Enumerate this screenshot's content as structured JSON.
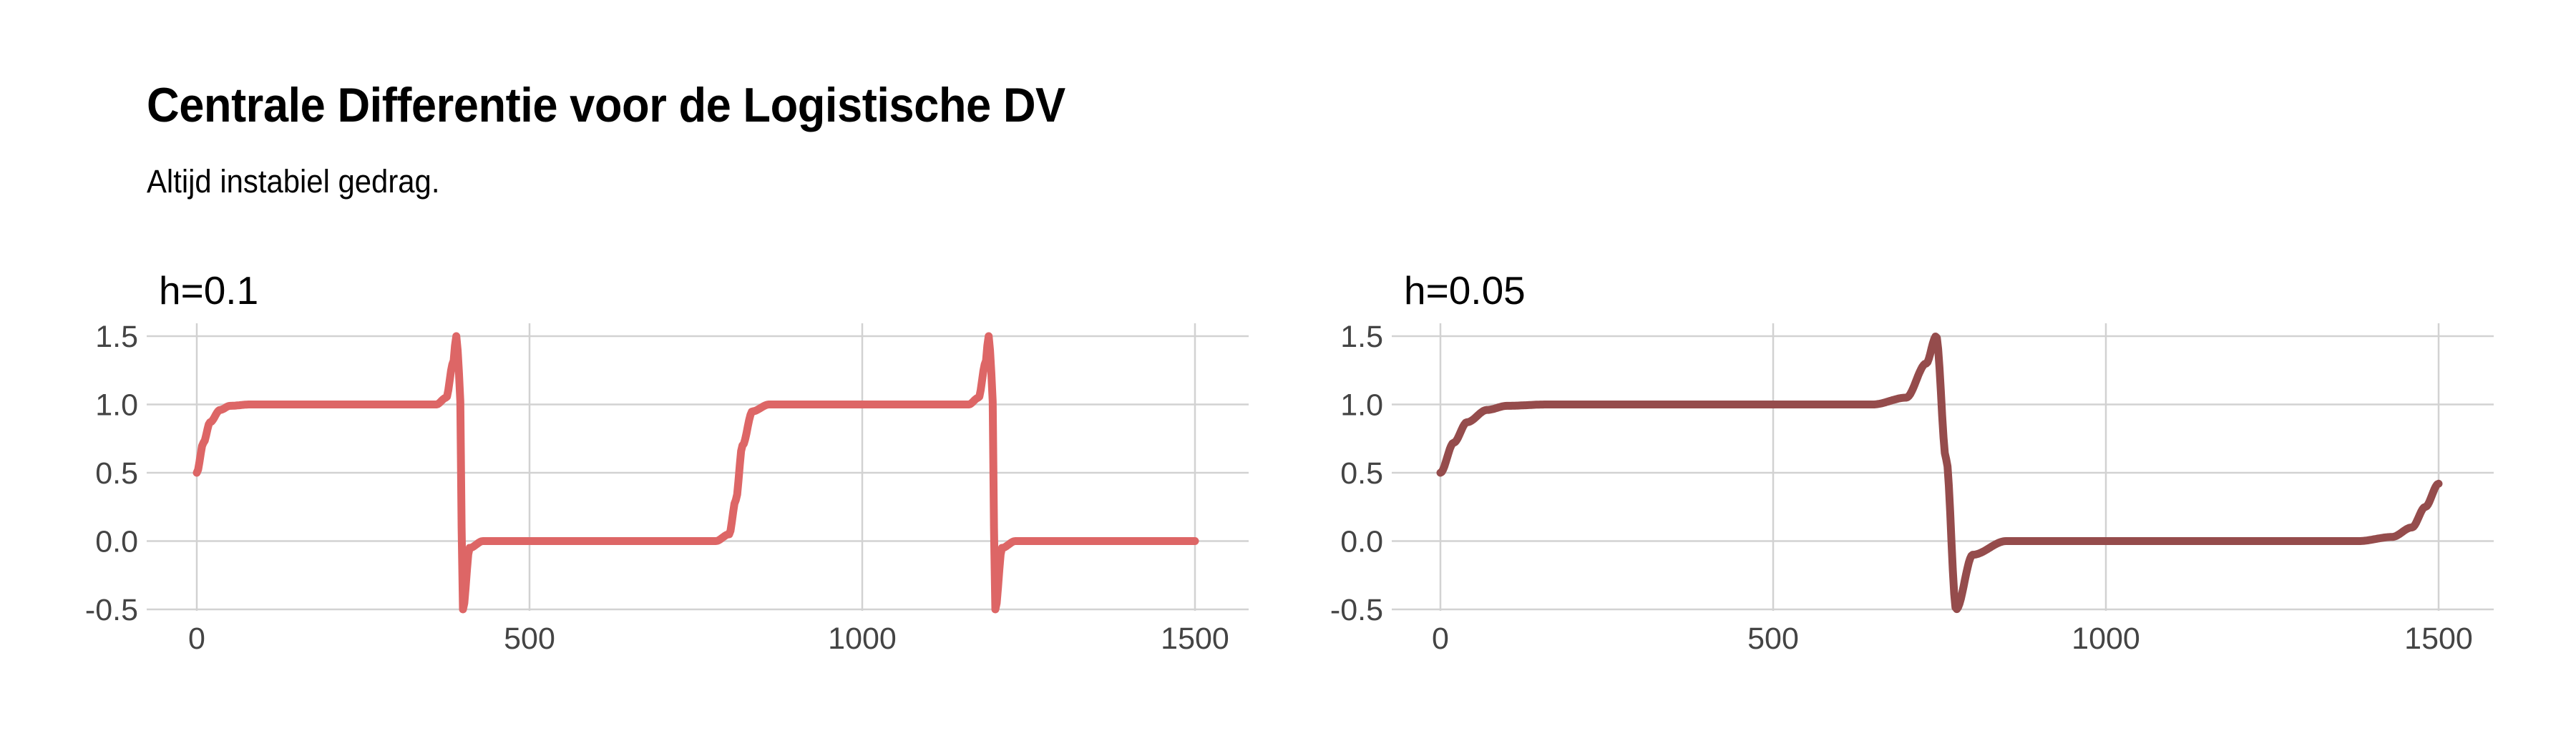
{
  "title": "Centrale Differentie voor de Logistische DV",
  "subtitle": "Altijd instabiel gedrag.",
  "chart_data": [
    {
      "type": "line",
      "title": "h=0.1",
      "xlabel": "",
      "ylabel": "",
      "xlim": [
        0,
        1500
      ],
      "ylim": [
        -0.5,
        1.5
      ],
      "xticks": [
        "0",
        "500",
        "1000",
        "1500"
      ],
      "yticks": [
        "-0.5",
        "0.0",
        "0.5",
        "1.0",
        "1.5"
      ],
      "color": "#dd6666",
      "grid": true,
      "legend": "none",
      "series": [
        {
          "values_description_points": [
            [
              0,
              0.5
            ],
            [
              10,
              0.72
            ],
            [
              20,
              0.87
            ],
            [
              35,
              0.96
            ],
            [
              50,
              0.99
            ],
            [
              80,
              1.0
            ],
            [
              360,
              1.0
            ],
            [
              375,
              1.05
            ],
            [
              385,
              1.3
            ],
            [
              390,
              1.5
            ],
            [
              395,
              1.2
            ],
            [
              400,
              -0.5
            ],
            [
              410,
              -0.05
            ],
            [
              430,
              0.0
            ],
            [
              780,
              0.0
            ],
            [
              800,
              0.05
            ],
            [
              810,
              0.3
            ],
            [
              820,
              0.7
            ],
            [
              835,
              0.95
            ],
            [
              860,
              1.0
            ],
            [
              1160,
              1.0
            ],
            [
              1175,
              1.05
            ],
            [
              1185,
              1.3
            ],
            [
              1190,
              1.5
            ],
            [
              1195,
              1.2
            ],
            [
              1200,
              -0.5
            ],
            [
              1210,
              -0.05
            ],
            [
              1230,
              0.0
            ],
            [
              1500,
              0.0
            ]
          ]
        }
      ]
    },
    {
      "type": "line",
      "title": "h=0.05",
      "xlabel": "",
      "ylabel": "",
      "xlim": [
        0,
        1500
      ],
      "ylim": [
        -0.5,
        1.5
      ],
      "xticks": [
        "0",
        "500",
        "1000",
        "1500"
      ],
      "yticks": [
        "-0.5",
        "0.0",
        "0.5",
        "1.0",
        "1.5"
      ],
      "color": "#954c4c",
      "grid": true,
      "legend": "none",
      "series": [
        {
          "values_description_points": [
            [
              0,
              0.5
            ],
            [
              20,
              0.72
            ],
            [
              40,
              0.87
            ],
            [
              70,
              0.96
            ],
            [
              100,
              0.99
            ],
            [
              160,
              1.0
            ],
            [
              650,
              1.0
            ],
            [
              700,
              1.05
            ],
            [
              730,
              1.3
            ],
            [
              745,
              1.5
            ],
            [
              760,
              0.6
            ],
            [
              775,
              -0.5
            ],
            [
              800,
              -0.1
            ],
            [
              850,
              0.0
            ],
            [
              1380,
              0.0
            ],
            [
              1430,
              0.03
            ],
            [
              1460,
              0.1
            ],
            [
              1480,
              0.25
            ],
            [
              1500,
              0.42
            ]
          ]
        }
      ]
    }
  ]
}
